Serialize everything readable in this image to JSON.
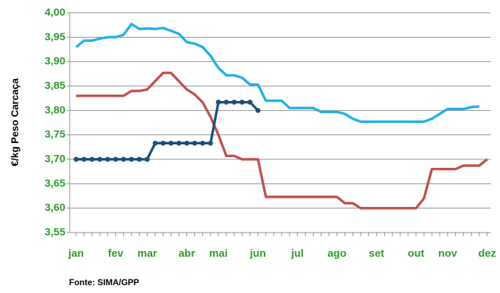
{
  "chart_data": {
    "type": "line",
    "y_label": "€/kg Peso Carcaça",
    "source": "Fonte:  SIMA/GPP",
    "categories": [
      "jan",
      null,
      null,
      null,
      null,
      "fev",
      null,
      null,
      null,
      "mar",
      null,
      null,
      null,
      null,
      "abr",
      null,
      null,
      null,
      "mai",
      null,
      null,
      null,
      null,
      "jun",
      null,
      null,
      null,
      null,
      "jul",
      null,
      null,
      null,
      null,
      "ago",
      null,
      null,
      null,
      null,
      "set",
      null,
      null,
      null,
      null,
      "out",
      null,
      null,
      null,
      "nov",
      null,
      null,
      null,
      null,
      "dez"
    ],
    "series": [
      {
        "color": "#1fb0e8",
        "markers": false,
        "values": [
          3.93,
          3.943,
          3.943,
          3.947,
          3.95,
          3.95,
          3.955,
          3.977,
          3.967,
          3.968,
          3.967,
          3.969,
          3.963,
          3.957,
          3.94,
          3.937,
          3.93,
          3.912,
          3.887,
          3.872,
          3.872,
          3.867,
          3.853,
          3.853,
          3.82,
          3.82,
          3.82,
          3.805,
          3.805,
          3.805,
          3.805,
          3.797,
          3.797,
          3.797,
          3.793,
          3.783,
          3.777,
          3.777,
          3.777,
          3.777,
          3.777,
          3.777,
          3.777,
          3.777,
          3.777,
          3.783,
          3.793,
          3.803,
          3.803,
          3.803,
          3.807,
          3.808,
          null
        ]
      },
      {
        "color": "#c0504d",
        "markers": false,
        "values": [
          3.83,
          3.83,
          3.83,
          3.83,
          3.83,
          3.83,
          3.83,
          3.84,
          3.84,
          3.843,
          3.86,
          3.877,
          3.877,
          3.86,
          3.843,
          3.833,
          3.817,
          3.787,
          3.75,
          3.707,
          3.707,
          3.7,
          3.7,
          3.7,
          3.623,
          3.623,
          3.623,
          3.623,
          3.623,
          3.623,
          3.623,
          3.623,
          3.623,
          3.623,
          3.61,
          3.61,
          3.6,
          3.6,
          3.6,
          3.6,
          3.6,
          3.6,
          3.6,
          3.6,
          3.62,
          3.68,
          3.68,
          3.68,
          3.68,
          3.687,
          3.687,
          3.687,
          3.7
        ]
      },
      {
        "color": "#1f4e79",
        "markers": true,
        "values": [
          3.7,
          3.7,
          3.7,
          3.7,
          3.7,
          3.7,
          3.7,
          3.7,
          3.7,
          3.7,
          3.733,
          3.733,
          3.733,
          3.733,
          3.733,
          3.733,
          3.733,
          3.733,
          3.817,
          3.817,
          3.817,
          3.817,
          3.817,
          3.8,
          null,
          null,
          null,
          null,
          null,
          null,
          null,
          null,
          null,
          null,
          null,
          null,
          null,
          null,
          null,
          null,
          null,
          null,
          null,
          null,
          null,
          null,
          null,
          null,
          null,
          null,
          null,
          null,
          null
        ]
      }
    ],
    "ylim": [
      3.55,
      4.0
    ],
    "yticks": [
      {
        "value": 3.55,
        "label": "3,55"
      },
      {
        "value": 3.6,
        "label": "3,60"
      },
      {
        "value": 3.65,
        "label": "3,65"
      },
      {
        "value": 3.7,
        "label": "3,70"
      },
      {
        "value": 3.75,
        "label": "3,75"
      },
      {
        "value": 3.8,
        "label": "3,80"
      },
      {
        "value": 3.85,
        "label": "3,85"
      },
      {
        "value": 3.9,
        "label": "3,90"
      },
      {
        "value": 3.95,
        "label": "3,95"
      },
      {
        "value": 4.0,
        "label": "4,00"
      }
    ],
    "grid": true
  }
}
